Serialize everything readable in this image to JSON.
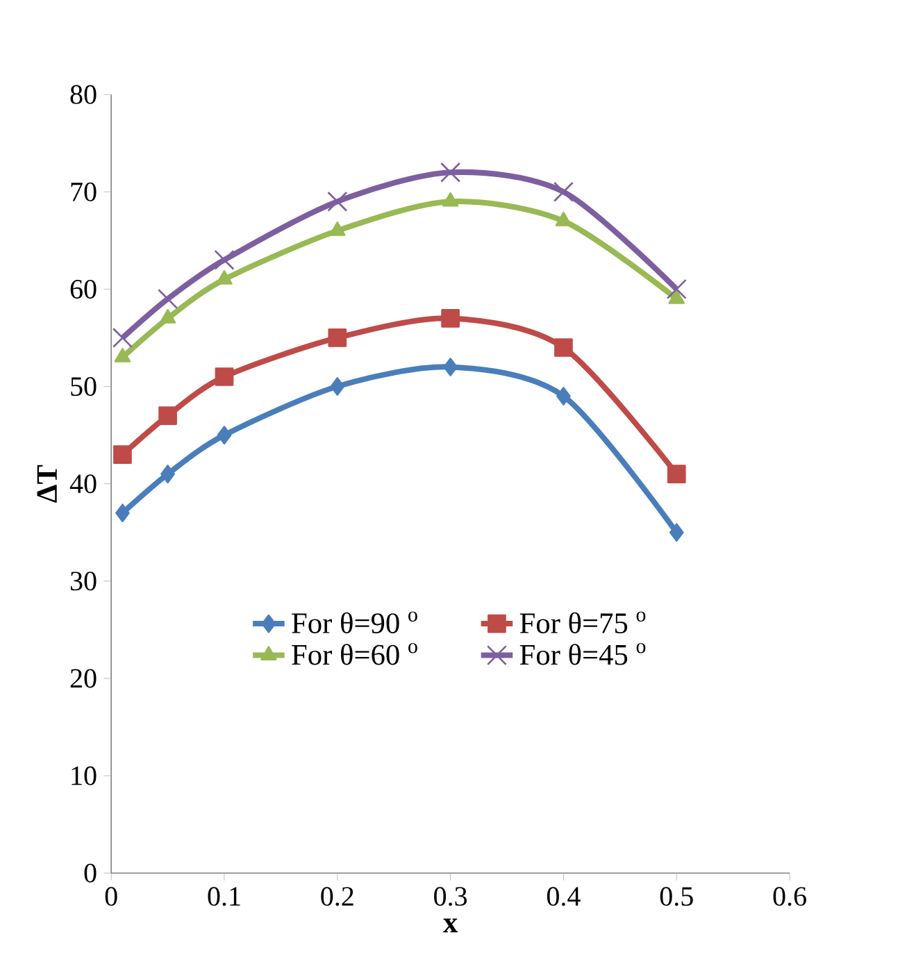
{
  "chart_data": {
    "type": "line",
    "xlabel": "x",
    "ylabel": "ΔT",
    "x": [
      0.01,
      0.05,
      0.1,
      0.2,
      0.3,
      0.4,
      0.5
    ],
    "series": [
      {
        "name": "For θ=90 $^{o}$",
        "color": "#4a7ebb",
        "marker": "diamond",
        "values": [
          37,
          41,
          45,
          50,
          52,
          49,
          35
        ]
      },
      {
        "name": "For θ=75 $^{o}$",
        "color": "#be4b48",
        "marker": "square",
        "values": [
          43,
          47,
          51,
          55,
          57,
          54,
          41
        ]
      },
      {
        "name": "For θ=60 $^{o}$",
        "color": "#98b954",
        "marker": "triangle",
        "values": [
          53,
          57,
          61,
          66,
          69,
          67,
          59
        ]
      },
      {
        "name": "For θ=45 $^{o}$",
        "color": "#7d5fa0",
        "marker": "cross",
        "values": [
          55,
          59,
          63,
          69,
          72,
          70,
          60
        ]
      }
    ],
    "xlim": [
      0,
      0.6
    ],
    "xticks": [
      0,
      0.1,
      0.2,
      0.3,
      0.4,
      0.5,
      0.6
    ],
    "ylim": [
      0,
      80
    ],
    "yticks": [
      0,
      10,
      20,
      30,
      40,
      50,
      60,
      70,
      80
    ],
    "grid": false,
    "legend": "center",
    "line_style": "solid"
  }
}
